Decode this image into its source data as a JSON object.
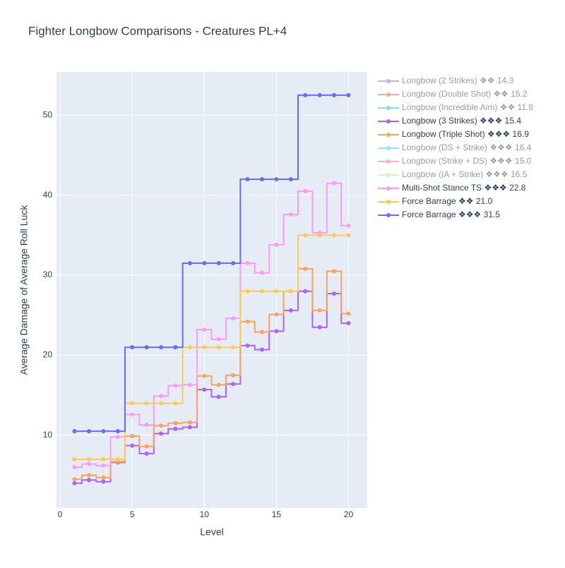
{
  "chart_data": {
    "type": "step",
    "title": "Fighter Longbow Comparisons - Creatures PL+4",
    "x_label": "Level",
    "y_label": "Average Damage of Average Roll Luck",
    "x": [
      1,
      2,
      3,
      4,
      5,
      6,
      7,
      8,
      9,
      10,
      11,
      12,
      13,
      14,
      15,
      16,
      17,
      18,
      19,
      20
    ],
    "xlim": [
      -0.25,
      21.3
    ],
    "xticks": [
      0,
      5,
      10,
      15,
      20
    ],
    "ylim": [
      0.9,
      55.4
    ],
    "yticks": [
      10,
      20,
      30,
      40,
      50
    ],
    "grid": true,
    "legend": "right",
    "series": [
      {
        "name": "Longbow (2 Strikes) ❖❖ 14.3",
        "color": "#636efa",
        "visible": false
      },
      {
        "name": "Longbow (Double Shot) ❖❖ 15.2",
        "color": "#EF553B",
        "visible": false
      },
      {
        "name": "Longbow (Incredible Aim) ❖❖ 11.8",
        "color": "#00cc96",
        "visible": false
      },
      {
        "name": "Longbow (3 Strikes) ❖❖❖ 15.4",
        "color": "#ab63fa",
        "visible": true,
        "values": [
          4.0,
          4.4,
          4.2,
          6.6,
          8.7,
          7.7,
          10.2,
          10.8,
          11.0,
          15.7,
          14.8,
          16.4,
          21.2,
          20.7,
          23.0,
          25.6,
          28.0,
          23.5,
          27.7,
          24.0
        ]
      },
      {
        "name": "Longbow (Triple Shot) ❖❖❖ 16.9",
        "color": "#FFA15A",
        "visible": true,
        "values": [
          4.5,
          5.0,
          4.7,
          6.7,
          9.9,
          8.6,
          11.2,
          11.5,
          11.6,
          17.4,
          16.3,
          17.5,
          24.2,
          22.9,
          25.1,
          28.0,
          30.8,
          25.6,
          30.5,
          25.2
        ]
      },
      {
        "name": "Longbow (DS + Strike) ❖❖❖ 16.4",
        "color": "#19d3f3",
        "visible": false
      },
      {
        "name": "Longbow (Strike + DS) ❖❖❖ 15.0",
        "color": "#FF6692",
        "visible": false
      },
      {
        "name": "Longbow (IA + Strike) ❖❖❖ 16.5",
        "color": "#B6E880",
        "visible": false
      },
      {
        "name": "Multi-Shot Stance TS ❖❖❖ 22.8",
        "color": "#FF97FF",
        "visible": true,
        "values": [
          6.0,
          6.4,
          6.2,
          9.8,
          12.6,
          11.3,
          14.9,
          16.2,
          16.3,
          23.2,
          22.0,
          24.6,
          31.5,
          30.3,
          33.8,
          37.6,
          40.5,
          35.3,
          41.5,
          36.2
        ]
      },
      {
        "name": "Force Barrage ❖❖ 21.0",
        "color": "#FECB52",
        "visible": true,
        "values": [
          7,
          7,
          7,
          7,
          14,
          14,
          14,
          14,
          21,
          21,
          21,
          21,
          28,
          28,
          28,
          28,
          35,
          35,
          35,
          35
        ]
      },
      {
        "name": "Force Barrage ❖❖❖ 31.5",
        "color": "#636efa",
        "visible": true,
        "values": [
          10.5,
          10.5,
          10.5,
          10.5,
          21,
          21,
          21,
          21,
          31.5,
          31.5,
          31.5,
          31.5,
          42,
          42,
          42,
          42,
          52.5,
          52.5,
          52.5,
          52.5
        ]
      }
    ]
  }
}
